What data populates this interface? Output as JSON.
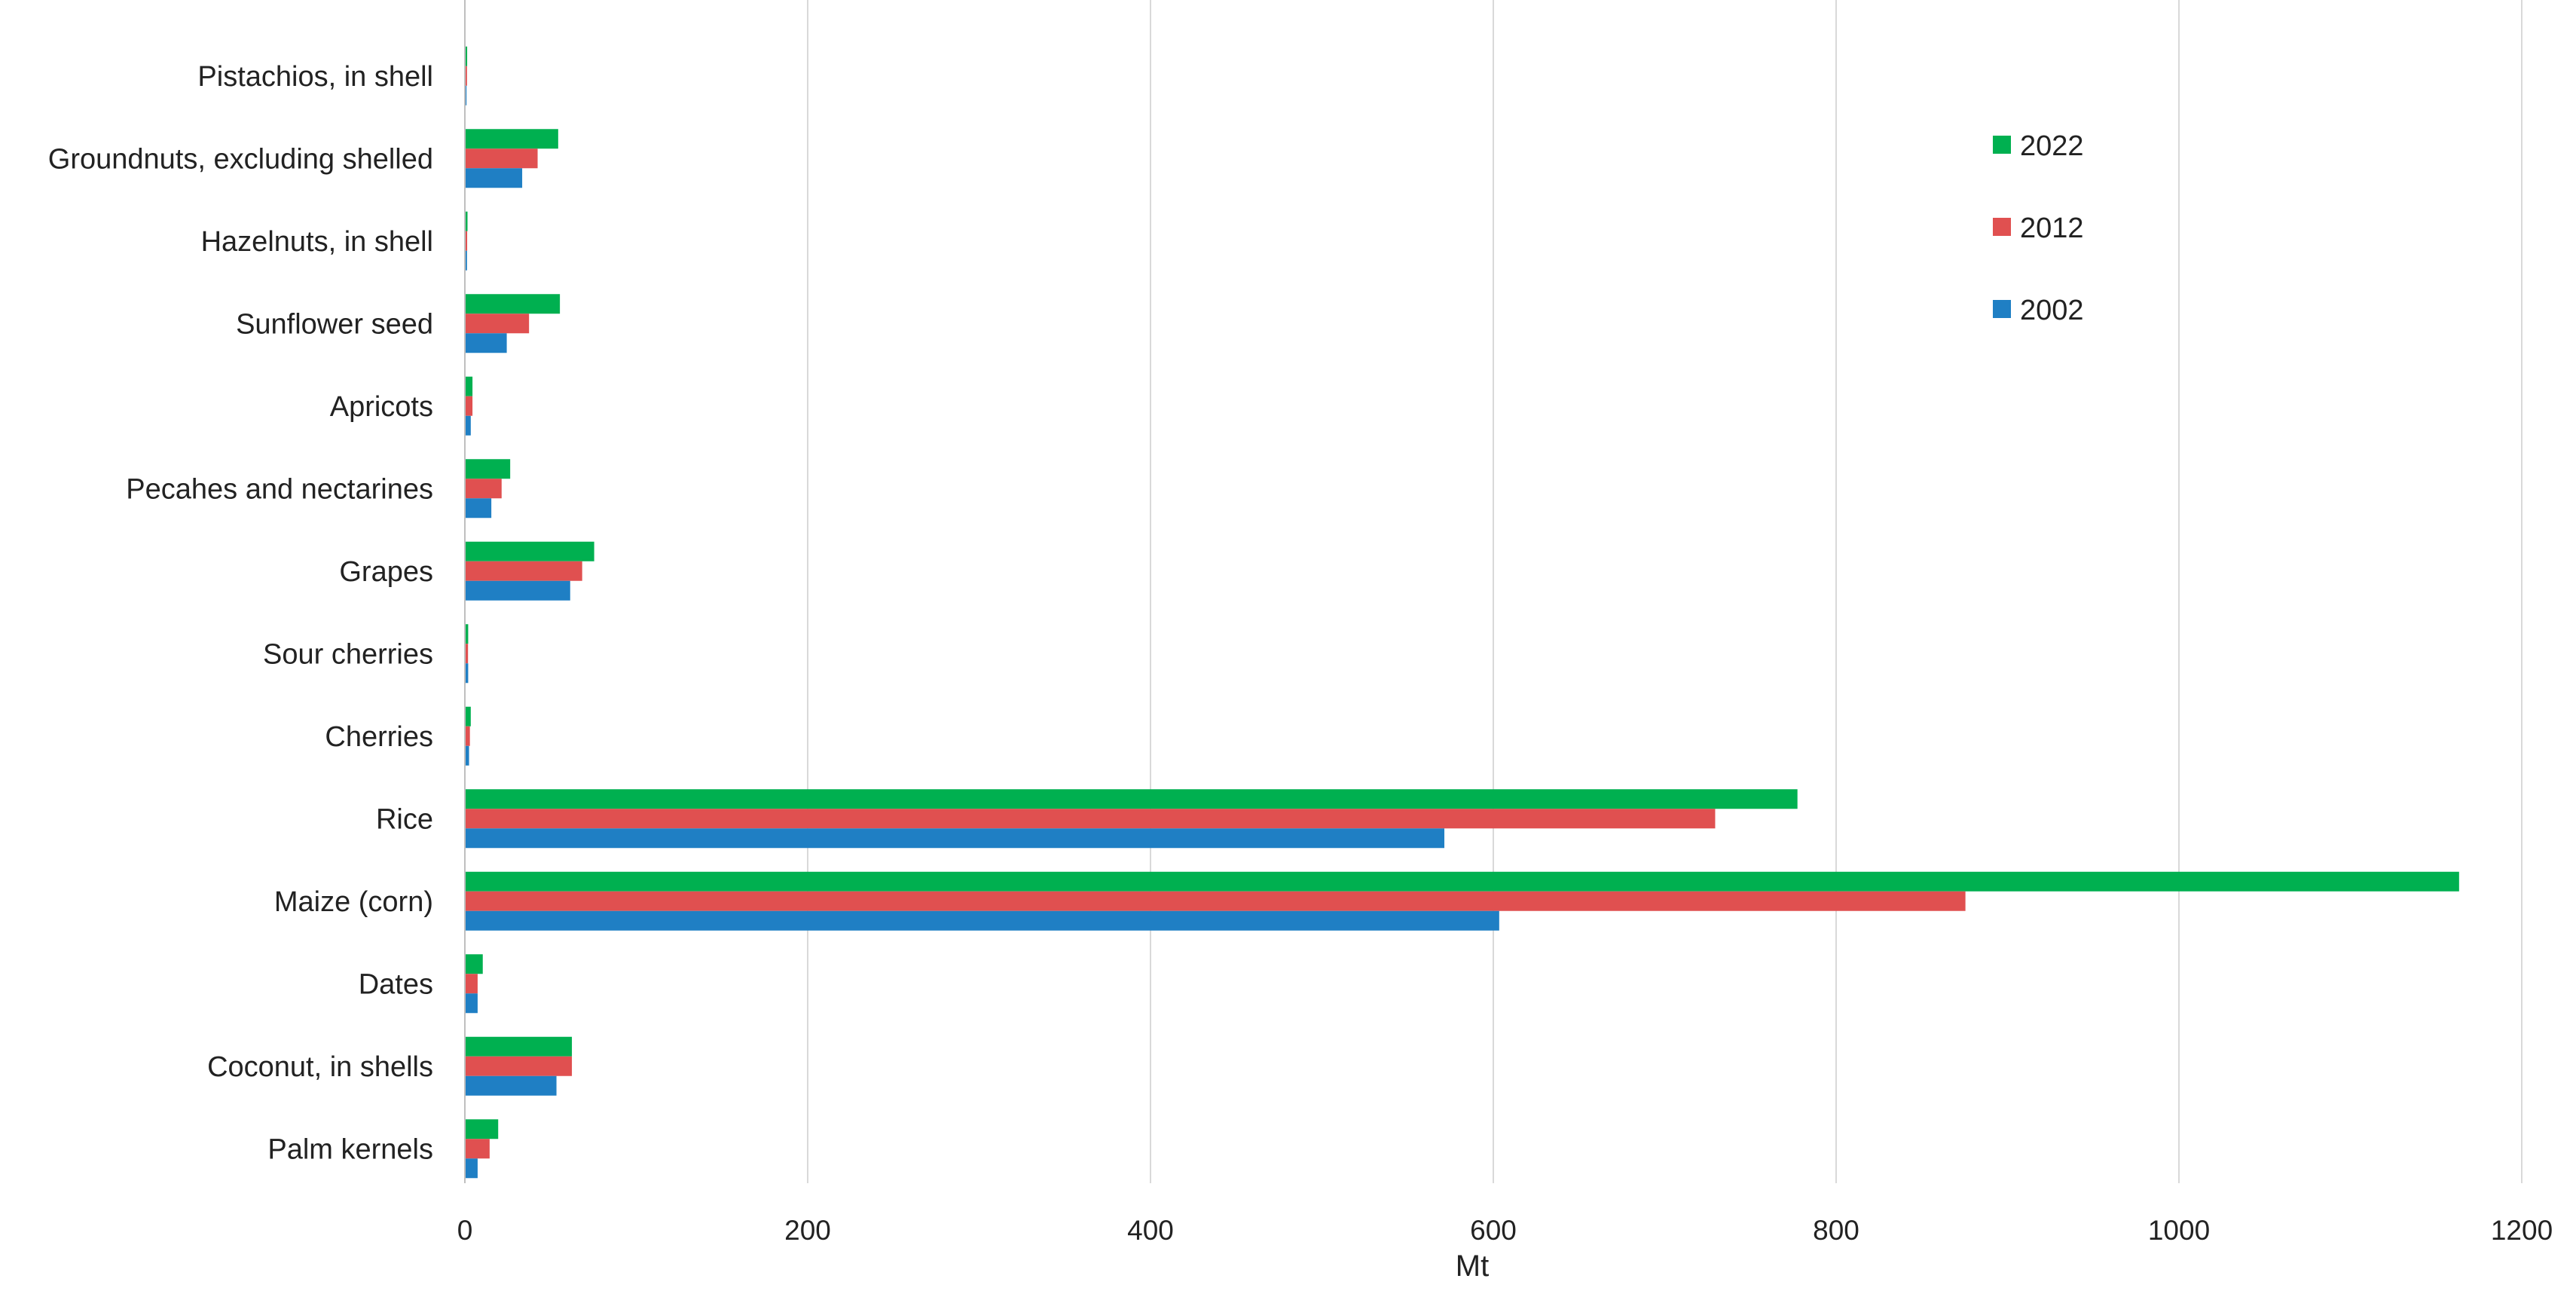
{
  "chart_data": {
    "type": "bar",
    "orientation": "horizontal",
    "categories": [
      "Pistachios, in shell",
      "Groundnuts, excluding shelled",
      "Hazelnuts, in shell",
      "Sunflower seed",
      "Apricots",
      "Pecahes and nectarines",
      "Grapes",
      "Sour cherries",
      "Cherries",
      "Rice",
      "Maize (corn)",
      "Dates",
      "Coconut, in shells",
      "Palm kernels"
    ],
    "series": [
      {
        "name": "2022",
        "color": "#00b050",
        "values": [
          0.9,
          54,
          1.1,
          55,
          4,
          26,
          75,
          1.5,
          3,
          777,
          1163,
          10,
          62,
          19
        ]
      },
      {
        "name": "2012",
        "color": "#e05050",
        "values": [
          0.8,
          42,
          0.9,
          37,
          4,
          21,
          68,
          1.4,
          2.5,
          729,
          875,
          7,
          62,
          14
        ]
      },
      {
        "name": "2002",
        "color": "#1f7fc4",
        "values": [
          0.5,
          33,
          0.8,
          24,
          3,
          15,
          61,
          1.5,
          2,
          571,
          603,
          7,
          53,
          7
        ]
      }
    ],
    "xlabel": "Mt",
    "ylabel": "",
    "xlim": [
      0,
      1200
    ],
    "xticks": [
      "0",
      "200",
      "400",
      "600",
      "800",
      "1000",
      "1200"
    ],
    "grid": "vertical",
    "legend": {
      "placement": "top-right",
      "order": [
        "2022",
        "2012",
        "2002"
      ]
    }
  }
}
